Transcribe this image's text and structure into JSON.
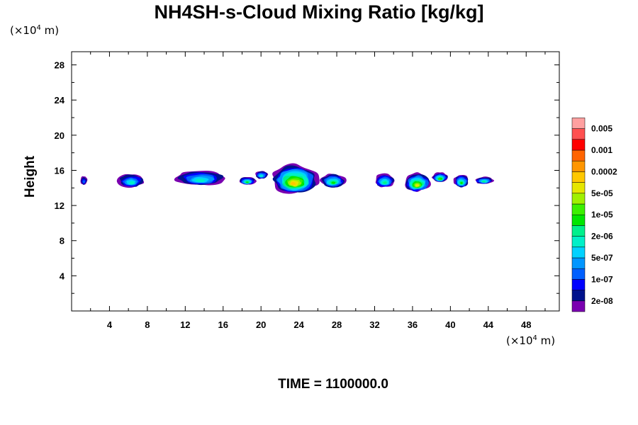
{
  "chart_data": {
    "type": "heatmap",
    "title": "NH4SH-s-Cloud Mixing Ratio [kg/kg]",
    "ylabel": "Height",
    "xlabel": "",
    "x_unit": {
      "prefix": "(×10",
      "exp": "4",
      "suffix": " m)"
    },
    "y_unit": {
      "prefix": "(×10",
      "exp": "4",
      "suffix": " m)"
    },
    "footer": "TIME = 1100000.0",
    "xlim": [
      0,
      51.5
    ],
    "ylim": [
      0,
      29.5
    ],
    "x_ticks": [
      4,
      8,
      12,
      16,
      20,
      24,
      28,
      32,
      36,
      40,
      44,
      48
    ],
    "y_ticks": [
      4,
      8,
      12,
      16,
      20,
      24,
      28
    ],
    "colorbar": {
      "colors": [
        "#7a00b0",
        "#00128c",
        "#0000ff",
        "#0060ff",
        "#0096ff",
        "#00d2ff",
        "#00f0c8",
        "#00f08c",
        "#00e600",
        "#3cf000",
        "#a0f000",
        "#e6e600",
        "#ffc800",
        "#ff9600",
        "#ff6400",
        "#ff0000",
        "#ff5050",
        "#ffa0a0"
      ],
      "labels": [
        "2e-08",
        "1e-07",
        "5e-07",
        "2e-06",
        "1e-05",
        "5e-05",
        "0.0002",
        "0.001",
        "0.005"
      ]
    },
    "cloud_patches": [
      {
        "x": [
          0.9,
          1.7
        ],
        "y": [
          14.3,
          15.4
        ],
        "max_level": 3
      },
      {
        "x": [
          4.8,
          7.8
        ],
        "y": [
          14.0,
          15.7
        ],
        "max_level": 6
      },
      {
        "x": [
          10.8,
          16.5
        ],
        "y": [
          14.2,
          16.1
        ],
        "max_level": 6
      },
      {
        "x": [
          17.6,
          19.5
        ],
        "y": [
          14.3,
          15.3
        ],
        "max_level": 8
      },
      {
        "x": [
          19.3,
          20.8
        ],
        "y": [
          15.0,
          16.0
        ],
        "max_level": 6
      },
      {
        "x": [
          20.9,
          26.2
        ],
        "y": [
          13.3,
          16.8
        ],
        "max_level": 12
      },
      {
        "x": [
          26.2,
          29.0
        ],
        "y": [
          14.0,
          15.7
        ],
        "max_level": 8
      },
      {
        "x": [
          31.9,
          34.2
        ],
        "y": [
          14.0,
          15.7
        ],
        "max_level": 7
      },
      {
        "x": [
          35.0,
          38.0
        ],
        "y": [
          13.5,
          15.8
        ],
        "max_level": 11
      },
      {
        "x": [
          38.0,
          39.8
        ],
        "y": [
          14.6,
          15.8
        ],
        "max_level": 9
      },
      {
        "x": [
          40.3,
          42.0
        ],
        "y": [
          14.0,
          15.6
        ],
        "max_level": 8
      },
      {
        "x": [
          42.5,
          44.6
        ],
        "y": [
          14.4,
          15.3
        ],
        "max_level": 7
      }
    ]
  }
}
